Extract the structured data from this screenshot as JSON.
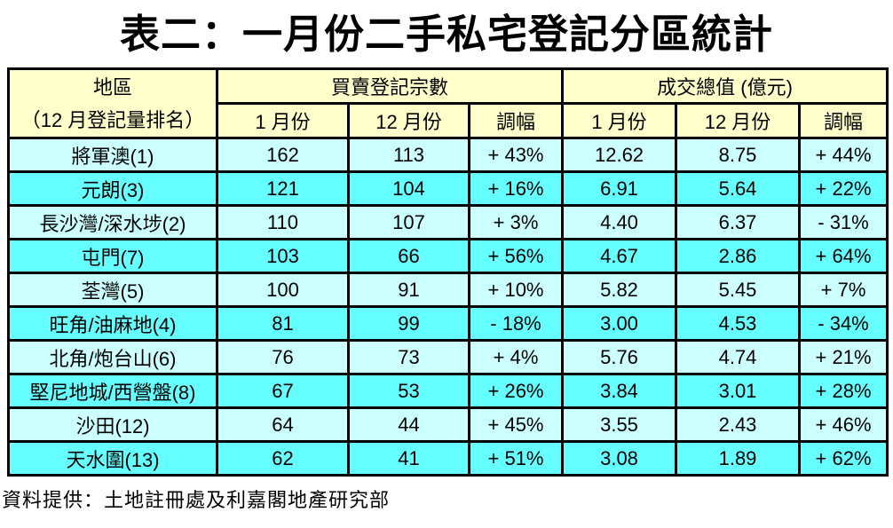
{
  "page": {
    "title": "表二：一月份二手私宅登記分區統計",
    "footer_source": "資料提供：土地註冊處及利嘉閣地產研究部"
  },
  "colors": {
    "header_bg": "#FFFFCC",
    "row_light_bg": "#CCFFFF",
    "row_bright_bg": "#66FFFF",
    "border": "#000000",
    "text": "#000000"
  },
  "table": {
    "header": {
      "district_label": "地區",
      "district_sublabel": "（12 月登記量排名）",
      "count_group": "買賣登記宗數",
      "value_group": "成交總值 (億元)",
      "sub_jan": "1 月份",
      "sub_dec": "12 月份",
      "sub_change": "調幅"
    },
    "rows": [
      {
        "district": "將軍澳(1)",
        "jan_count": "162",
        "dec_count": "113",
        "count_change": "+ 43%",
        "jan_value": "12.62",
        "dec_value": "8.75",
        "value_change": "+ 44%"
      },
      {
        "district": "元朗(3)",
        "jan_count": "121",
        "dec_count": "104",
        "count_change": "+ 16%",
        "jan_value": "6.91",
        "dec_value": "5.64",
        "value_change": "+ 22%"
      },
      {
        "district": "長沙灣/深水埗(2)",
        "jan_count": "110",
        "dec_count": "107",
        "count_change": "+ 3%",
        "jan_value": "4.40",
        "dec_value": "6.37",
        "value_change": "- 31%"
      },
      {
        "district": "屯門(7)",
        "jan_count": "103",
        "dec_count": "66",
        "count_change": "+ 56%",
        "jan_value": "4.67",
        "dec_value": "2.86",
        "value_change": "+ 64%"
      },
      {
        "district": "荃灣(5)",
        "jan_count": "100",
        "dec_count": "91",
        "count_change": "+ 10%",
        "jan_value": "5.82",
        "dec_value": "5.45",
        "value_change": "+ 7%"
      },
      {
        "district": "旺角/油麻地(4)",
        "jan_count": "81",
        "dec_count": "99",
        "count_change": "- 18%",
        "jan_value": "3.00",
        "dec_value": "4.53",
        "value_change": "- 34%"
      },
      {
        "district": "北角/炮台山(6)",
        "jan_count": "76",
        "dec_count": "73",
        "count_change": "+ 4%",
        "jan_value": "5.76",
        "dec_value": "4.74",
        "value_change": "+ 21%"
      },
      {
        "district": "堅尼地城/西營盤(8)",
        "jan_count": "67",
        "dec_count": "53",
        "count_change": "+ 26%",
        "jan_value": "3.84",
        "dec_value": "3.01",
        "value_change": "+ 28%"
      },
      {
        "district": "沙田(12)",
        "jan_count": "64",
        "dec_count": "44",
        "count_change": "+ 45%",
        "jan_value": "3.55",
        "dec_value": "2.43",
        "value_change": "+ 46%"
      },
      {
        "district": "天水圍(13)",
        "jan_count": "62",
        "dec_count": "41",
        "count_change": "+ 51%",
        "jan_value": "3.08",
        "dec_value": "1.89",
        "value_change": "+ 62%"
      }
    ]
  },
  "chart_data": {
    "type": "table",
    "title": "表二：一月份二手私宅登記分區統計",
    "column_groups": [
      "地區（12 月登記量排名）",
      "買賣登記宗數",
      "成交總值 (億元)"
    ],
    "columns": [
      "地區",
      "買賣登記宗數 1月份",
      "買賣登記宗數 12月份",
      "買賣登記宗數 調幅",
      "成交總值(億元) 1月份",
      "成交總值(億元) 12月份",
      "成交總值(億元) 調幅"
    ],
    "rows": [
      [
        "將軍澳(1)",
        162,
        113,
        "+43%",
        12.62,
        8.75,
        "+44%"
      ],
      [
        "元朗(3)",
        121,
        104,
        "+16%",
        6.91,
        5.64,
        "+22%"
      ],
      [
        "長沙灣/深水埗(2)",
        110,
        107,
        "+3%",
        4.4,
        6.37,
        "-31%"
      ],
      [
        "屯門(7)",
        103,
        66,
        "+56%",
        4.67,
        2.86,
        "+64%"
      ],
      [
        "荃灣(5)",
        100,
        91,
        "+10%",
        5.82,
        5.45,
        "+7%"
      ],
      [
        "旺角/油麻地(4)",
        81,
        99,
        "-18%",
        3.0,
        4.53,
        "-34%"
      ],
      [
        "北角/炮台山(6)",
        76,
        73,
        "+4%",
        5.76,
        4.74,
        "+21%"
      ],
      [
        "堅尼地城/西營盤(8)",
        67,
        53,
        "+26%",
        3.84,
        3.01,
        "+28%"
      ],
      [
        "沙田(12)",
        64,
        44,
        "+45%",
        3.55,
        2.43,
        "+46%"
      ],
      [
        "天水圍(13)",
        62,
        41,
        "+51%",
        3.08,
        1.89,
        "+62%"
      ]
    ],
    "source_note": "資料提供：土地註冊處及利嘉閣地產研究部"
  }
}
